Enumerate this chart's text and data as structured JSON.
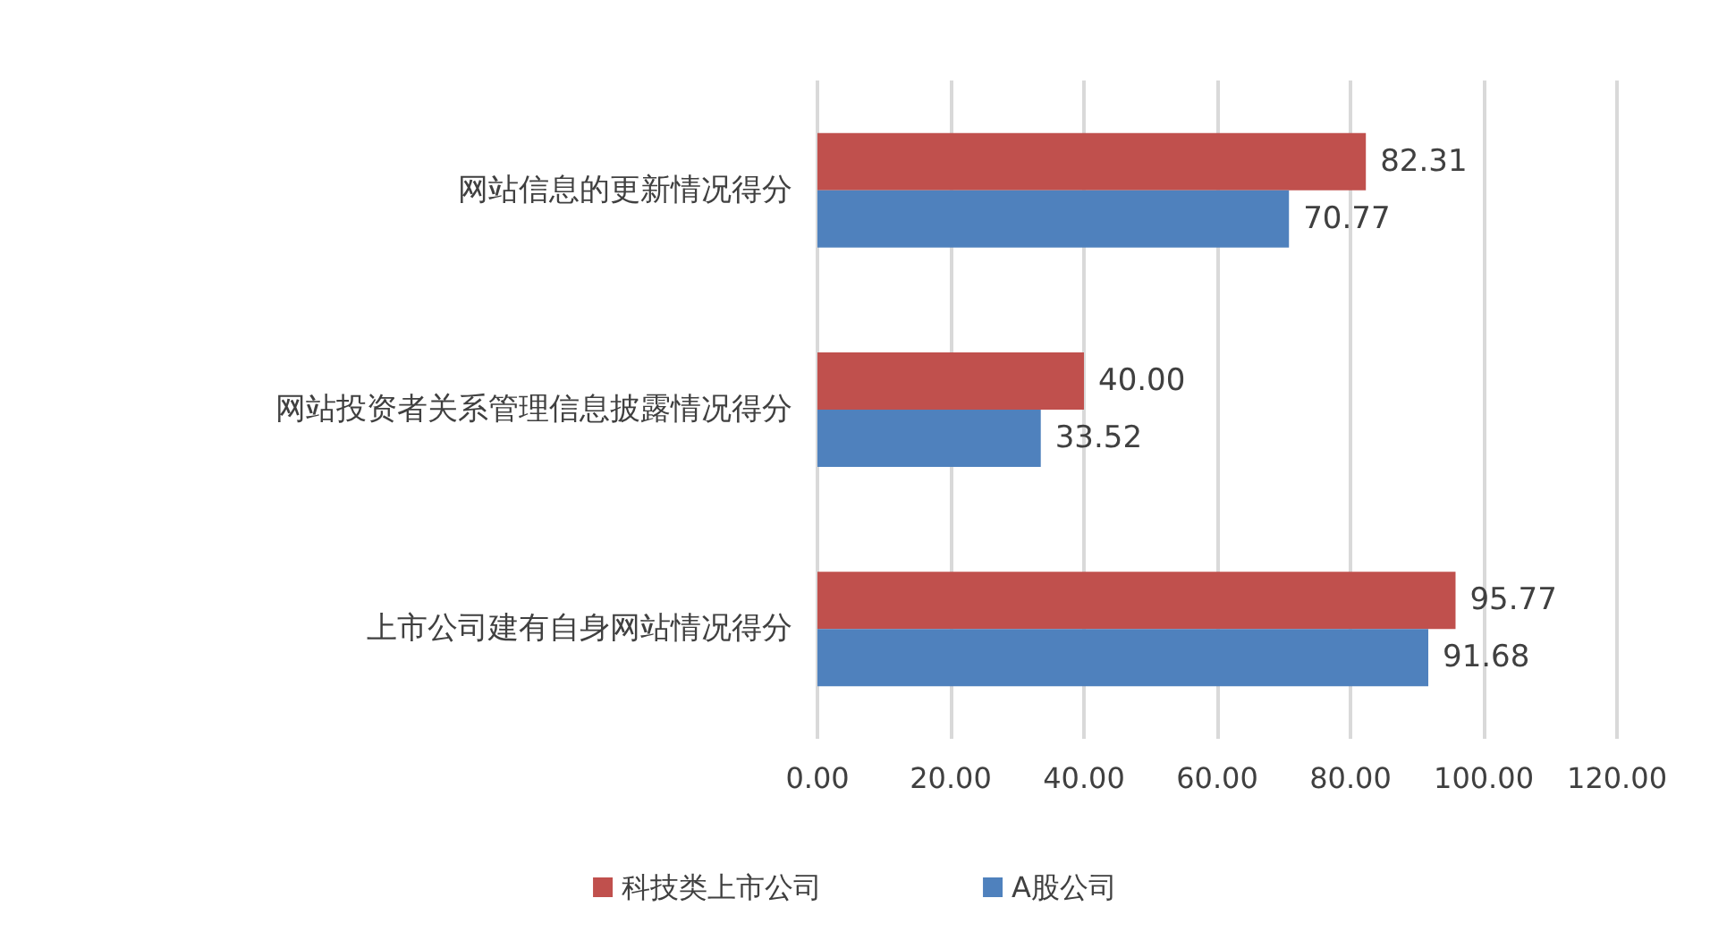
{
  "chart_data": {
    "type": "bar",
    "orientation": "horizontal",
    "categories": [
      "网站信息的更新情况得分",
      "网站投资者关系管理信息披露情况得分",
      "上市公司建有自身网站情况得分"
    ],
    "series": [
      {
        "name": "科技类上市公司",
        "color": "#c0504d",
        "values": [
          82.31,
          40.0,
          95.77
        ],
        "value_labels": [
          "82.31",
          "40.00",
          "95.77"
        ]
      },
      {
        "name": "A股公司",
        "color": "#4f81bd",
        "values": [
          70.77,
          33.52,
          91.68
        ],
        "value_labels": [
          "70.77",
          "33.52",
          "91.68"
        ]
      }
    ],
    "xlim": [
      0,
      120
    ],
    "xticks": [
      {
        "value": 0,
        "label": "0.00"
      },
      {
        "value": 20,
        "label": "20.00"
      },
      {
        "value": 40,
        "label": "40.00"
      },
      {
        "value": 60,
        "label": "60.00"
      },
      {
        "value": 80,
        "label": "80.00"
      },
      {
        "value": 100,
        "label": "100.00"
      },
      {
        "value": 120,
        "label": "120.00"
      }
    ],
    "grid": "x",
    "legend": "bottom"
  }
}
